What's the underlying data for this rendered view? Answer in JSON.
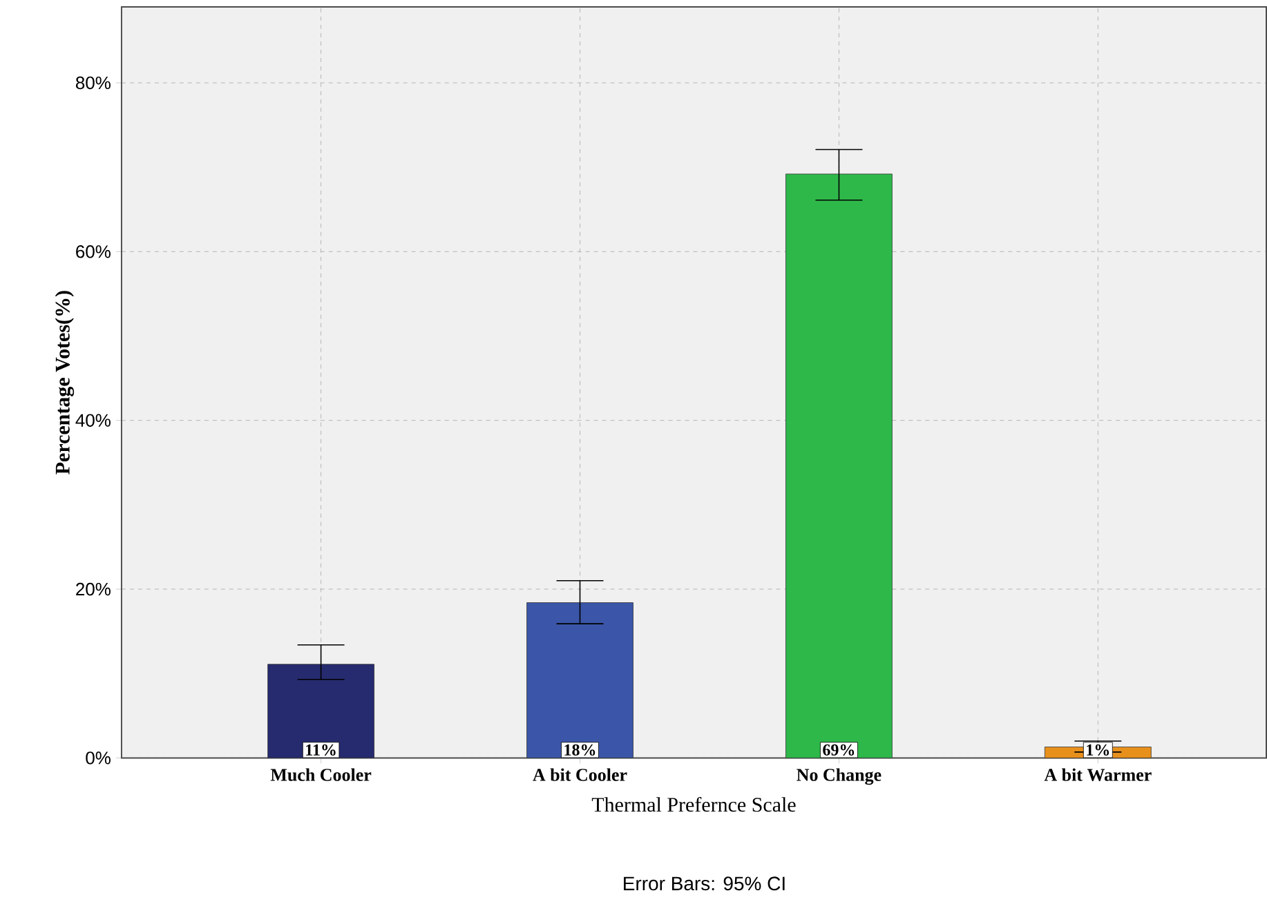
{
  "chart_data": {
    "type": "bar",
    "xlabel": "Thermal Prefernce Scale",
    "ylabel": "Percentage Votes(%)",
    "categories": [
      "Much Cooler",
      "A bit Cooler",
      "No Change",
      "A bit Warmer"
    ],
    "values": [
      11.1,
      18.4,
      69.2,
      1.3
    ],
    "colors": [
      "#262a6e",
      "#3b56a8",
      "#2eb84a",
      "#e8901c"
    ],
    "errors": [
      [
        9.3,
        13.4
      ],
      [
        15.9,
        21.0
      ],
      [
        66.1,
        72.1
      ],
      [
        0.7,
        2.0
      ]
    ],
    "value_labels": [
      "11%",
      "18%",
      "69%",
      "1%"
    ],
    "ylim": [
      0,
      89
    ],
    "yticks": [
      {
        "value": 0,
        "label": "0%"
      },
      {
        "value": 20,
        "label": "20%"
      },
      {
        "value": 40,
        "label": "40%"
      },
      {
        "value": 60,
        "label": "60%"
      },
      {
        "value": 80,
        "label": "80%"
      }
    ],
    "grid": true,
    "annotations": [
      "Error Bars: 95% CI"
    ]
  }
}
